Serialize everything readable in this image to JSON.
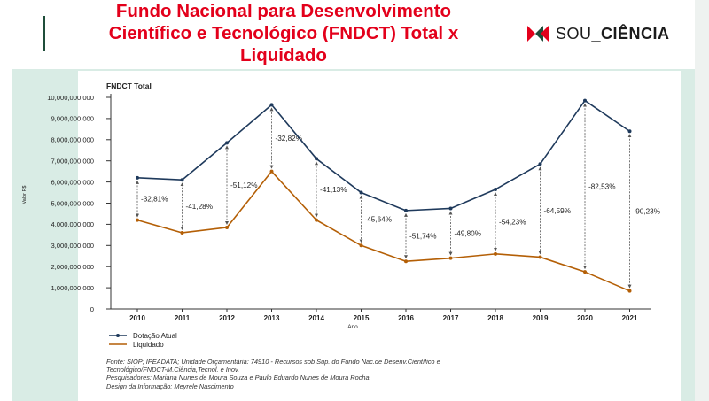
{
  "header": {
    "title_line1": "Fundo Nacional para Desenvolvimento",
    "title_line2": "Científico e Tecnológico (FNDCT) Total x",
    "title_line3": "Liquidado",
    "logo_text_light": "SOU_",
    "logo_text_bold": "CIÊNCIA",
    "logo_icon": "sou-ciencia-logo-icon"
  },
  "colors": {
    "title": "#e3001b",
    "series_dotacao": "#1f3a5c",
    "series_liquidado": "#b45f06",
    "arrow": "#555555",
    "frame": "#d9ece5"
  },
  "chart_data": {
    "type": "line",
    "title": "FNDCT Total",
    "xlabel": "Ano",
    "ylabel": "Valor R$",
    "ylim": [
      0,
      10000000000
    ],
    "yticks": [
      0,
      1000000000,
      2000000000,
      3000000000,
      4000000000,
      5000000000,
      6000000000,
      7000000000,
      8000000000,
      9000000000,
      10000000000
    ],
    "ytick_labels": [
      "0",
      "1,000,000,000",
      "2,000,000,000",
      "3,000,000,000",
      "4,000,000,000",
      "5,000,000,000",
      "6,000,000,000",
      "7,000,000,000",
      "8,000,000,000",
      "9,000,000,000",
      "10,000,000,000"
    ],
    "categories": [
      "2010",
      "2011",
      "2012",
      "2013",
      "2014",
      "2015",
      "2016",
      "2017",
      "2018",
      "2019",
      "2020",
      "2021"
    ],
    "series": [
      {
        "name": "Dotação Atual",
        "values": [
          6200000000,
          6100000000,
          7850000000,
          9650000000,
          7100000000,
          5500000000,
          4650000000,
          4750000000,
          5650000000,
          6850000000,
          9850000000,
          8400000000
        ]
      },
      {
        "name": "Liquidado",
        "values": [
          4200000000,
          3600000000,
          3850000000,
          6500000000,
          4200000000,
          3000000000,
          2250000000,
          2400000000,
          2600000000,
          2450000000,
          1750000000,
          850000000
        ]
      }
    ],
    "annotations": [
      "-32,81%",
      "-41,28%",
      "-51,12%",
      "-32,82%",
      "-41,13%",
      "-45,64%",
      "-51,74%",
      "-49,80%",
      "-54,23%",
      "-64,59%",
      "-82,53%",
      "-90,23%"
    ],
    "legend": [
      "Dotação Atual",
      "Liquidado"
    ],
    "legend_position": "bottom-left",
    "grid": false
  },
  "source": {
    "line1": "Fonte: SIOP; IPEADATA; Unidade Orçamentária: 74910 - Recursos sob Sup. do Fundo Nac.de Desenv.Científico e",
    "line2": "Tecnológico/FNDCT-M.Ciência,Tecnol. e Inov.",
    "line3": "Pesquisadores: Mariana Nunes de Moura Souza e Paulo Eduardo Nunes de Moura Rocha",
    "line4": "Design da Informação: Meyrele Nascimento"
  }
}
